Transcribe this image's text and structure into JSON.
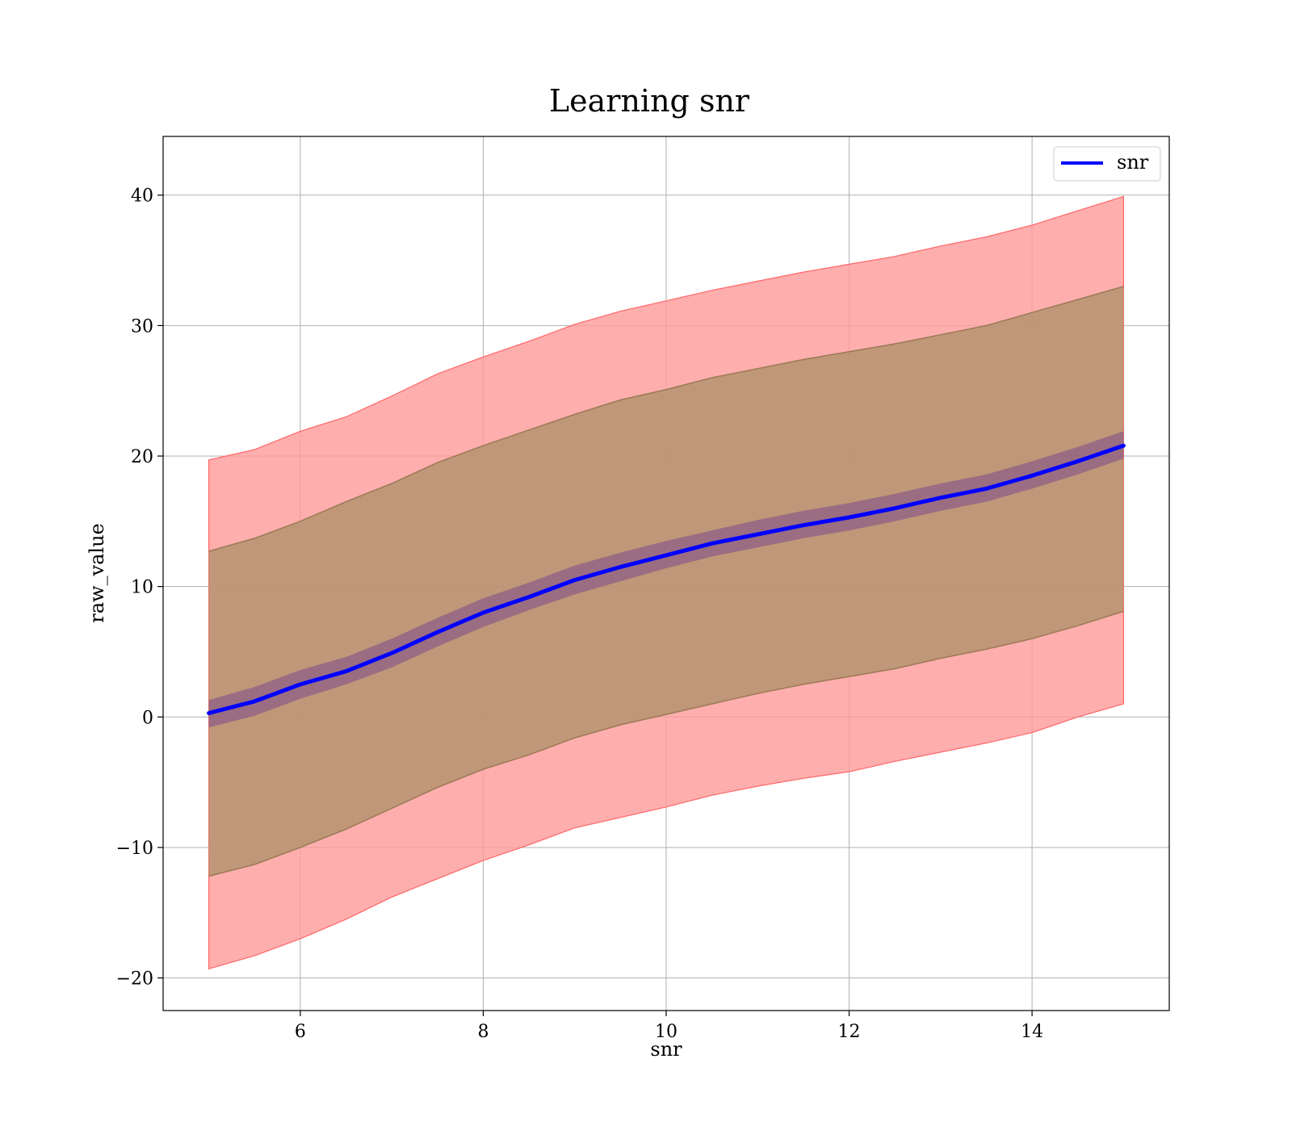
{
  "chart_data": {
    "type": "line",
    "title": "Learning snr",
    "xlabel": "snr",
    "ylabel": "raw_value",
    "xlim": [
      4.5,
      15.5
    ],
    "ylim": [
      -22.5,
      44.5
    ],
    "x_ticks": [
      6,
      8,
      10,
      12,
      14
    ],
    "y_ticks": [
      -20,
      -10,
      0,
      10,
      20,
      30,
      40
    ],
    "x_tick_labels": [
      "6",
      "8",
      "10",
      "12",
      "14"
    ],
    "y_tick_labels": [
      "−20",
      "−10",
      "0",
      "10",
      "20",
      "30",
      "40"
    ],
    "grid": true,
    "legend_position": "upper right",
    "colors": {
      "mean_line": "#0000ff",
      "outer_band": "#ff9a9a",
      "outer_band_edge": "#ff6666",
      "middle_band": "#b5936f",
      "middle_band_edge": "#9a7a55",
      "inner_band": "#7a4b8a",
      "grid": "#b0b0b0"
    },
    "x": [
      5,
      5.5,
      6,
      6.5,
      7,
      7.5,
      8,
      8.5,
      9,
      9.5,
      10,
      10.5,
      11,
      11.5,
      12,
      12.5,
      13,
      13.5,
      14,
      14.5,
      15
    ],
    "series": [
      {
        "name": "snr",
        "values": [
          0.3,
          1.2,
          2.5,
          3.5,
          4.9,
          6.5,
          8.0,
          9.2,
          10.5,
          11.5,
          12.4,
          13.3,
          14.0,
          14.7,
          15.3,
          16.0,
          16.8,
          17.5,
          18.5,
          19.6,
          20.8
        ]
      }
    ],
    "bands": [
      {
        "role": "outer",
        "lower": [
          -19.3,
          -18.3,
          -17.0,
          -15.5,
          -13.8,
          -12.4,
          -11.0,
          -9.8,
          -8.5,
          -7.7,
          -6.9,
          -6.0,
          -5.3,
          -4.7,
          -4.2,
          -3.4,
          -2.7,
          -2.0,
          -1.2,
          0.0,
          1.0
        ],
        "upper": [
          19.7,
          20.5,
          21.9,
          23.0,
          24.6,
          26.3,
          27.6,
          28.8,
          30.1,
          31.1,
          31.9,
          32.7,
          33.4,
          34.1,
          34.7,
          35.3,
          36.1,
          36.8,
          37.7,
          38.8,
          39.9
        ]
      },
      {
        "role": "middle",
        "lower": [
          -12.2,
          -11.3,
          -10.0,
          -8.6,
          -7.0,
          -5.4,
          -4.0,
          -2.9,
          -1.6,
          -0.6,
          0.2,
          1.0,
          1.8,
          2.5,
          3.1,
          3.7,
          4.5,
          5.2,
          6.0,
          7.0,
          8.1
        ]
      },
      {
        "role": "middle",
        "upper": [
          12.7,
          13.7,
          15.0,
          16.5,
          17.9,
          19.5,
          20.8,
          22.0,
          23.2,
          24.3,
          25.1,
          26.0,
          26.7,
          27.4,
          28.0,
          28.6,
          29.3,
          30.0,
          31.0,
          32.0,
          33.0
        ]
      },
      {
        "role": "inner",
        "lower": [
          -0.8,
          0.1,
          1.4,
          2.5,
          3.8,
          5.4,
          6.9,
          8.2,
          9.4,
          10.4,
          11.4,
          12.3,
          13.0,
          13.7,
          14.3,
          15.0,
          15.8,
          16.5,
          17.5,
          18.6,
          19.8
        ],
        "upper": [
          1.3,
          2.3,
          3.6,
          4.6,
          6.0,
          7.6,
          9.1,
          10.3,
          11.6,
          12.6,
          13.5,
          14.3,
          15.1,
          15.8,
          16.4,
          17.1,
          17.9,
          18.6,
          19.6,
          20.7,
          21.9
        ]
      }
    ]
  }
}
